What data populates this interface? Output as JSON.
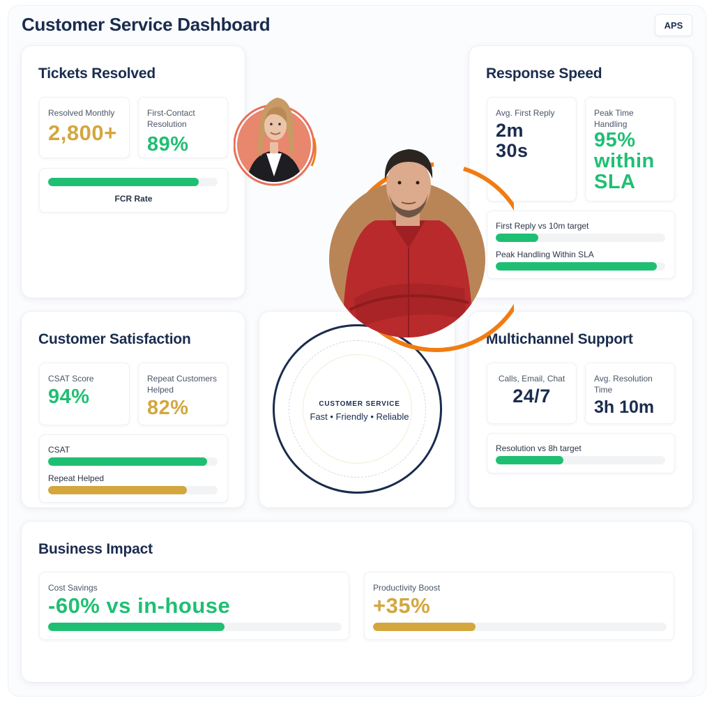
{
  "header": {
    "title": "Customer Service Dashboard",
    "badge": "APS"
  },
  "tickets": {
    "title": "Tickets Resolved",
    "resolved_label": "Resolved Monthly",
    "resolved_value": "2,800+",
    "fcr_label": "First-Contact Resolution",
    "fcr_value": "89%",
    "bar_label": "FCR Rate",
    "bar_fraction": 0.89
  },
  "response": {
    "title": "Response Speed",
    "first_reply_label": "Avg. First Reply",
    "first_reply_value_line1": "2m",
    "first_reply_value_line2": "30s",
    "peak_label": "Peak Time Handling",
    "peak_value_line1": "95%",
    "peak_value_line2": "within",
    "peak_value_line3": "SLA",
    "bar1_label": "First Reply vs 10m target",
    "bar1_fraction": 0.25,
    "bar2_label": "Peak Handling Within SLA",
    "bar2_fraction": 0.95
  },
  "satisfaction": {
    "title": "Customer Satisfaction",
    "csat_label": "CSAT Score",
    "csat_value": "94%",
    "repeat_label": "Repeat Customers Helped",
    "repeat_value": "82%",
    "bar1_label": "CSAT",
    "bar1_fraction": 0.94,
    "bar2_label": "Repeat Helped",
    "bar2_fraction": 0.82
  },
  "center": {
    "title": "CUSTOMER SERVICE",
    "tagline": "Fast • Friendly • Reliable"
  },
  "multichannel": {
    "title": "Multichannel Support",
    "channels_label": "Calls, Email, Chat",
    "channels_value": "24/7",
    "resolution_label": "Avg. Resolution Time",
    "resolution_value": "3h 10m",
    "bar_label": "Resolution vs 8h target",
    "bar_fraction": 0.4
  },
  "impact": {
    "title": "Business Impact",
    "cost_label": "Cost Savings",
    "cost_value": "-60% vs in-house",
    "cost_fraction": 0.6,
    "productivity_label": "Productivity Boost",
    "productivity_value": "+35%",
    "productivity_fraction": 0.35
  },
  "colors": {
    "navy": "#1a2c4e",
    "green": "#1fbf73",
    "gold": "#d3a73e",
    "orange": "#f07c12",
    "coral": "#e8705a"
  },
  "icons": {
    "agent_female": "avatar-female-agent",
    "agent_male": "avatar-male-agent"
  }
}
